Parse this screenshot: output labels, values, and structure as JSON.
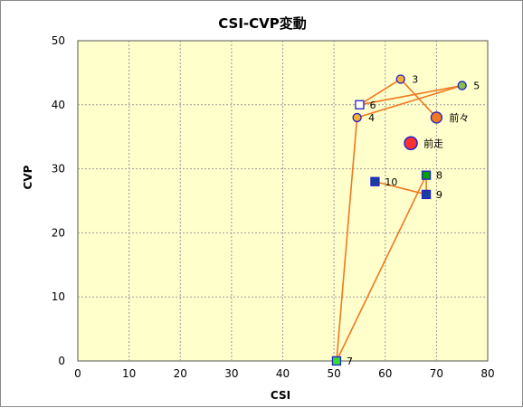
{
  "chart_data": {
    "type": "scatter",
    "title": "CSI-CVP変動",
    "xlabel": "CSI",
    "ylabel": "CVP",
    "xlim": [
      0,
      80
    ],
    "ylim": [
      0,
      50
    ],
    "xticks": [
      0,
      10,
      20,
      30,
      40,
      50,
      60,
      70,
      80
    ],
    "yticks": [
      0,
      10,
      20,
      30,
      40,
      50
    ],
    "grid": true,
    "colors": {
      "plot_bg": "#FFFFCC",
      "grid": "#9A9A9A",
      "line": "#F07820",
      "circle_fill_orange": "#F5B030",
      "circle_fill_latest": "#FF3030",
      "circle_fill_prev": "#F07820",
      "circle_fill_green": "#88C050",
      "square_fill_blue": "#1A3F9E",
      "square_fill_green": "#00A000",
      "square_fill_light_green": "#33DD33",
      "square_fill_white": "#FFFFFF",
      "marker_stroke": "#2222CC"
    },
    "points": [
      {
        "label": "前走",
        "x": 65,
        "y": 34,
        "marker": "circle-large",
        "fill": "circle_fill_latest"
      },
      {
        "label": "前々",
        "x": 70,
        "y": 38,
        "marker": "circle",
        "fill": "circle_fill_prev"
      },
      {
        "label": "3",
        "x": 63,
        "y": 44,
        "marker": "circle",
        "fill": "circle_fill_orange"
      },
      {
        "label": "4",
        "x": 54.5,
        "y": 38,
        "marker": "circle",
        "fill": "circle_fill_orange"
      },
      {
        "label": "5",
        "x": 75,
        "y": 43,
        "marker": "circle",
        "fill": "circle_fill_green"
      },
      {
        "label": "6",
        "x": 55,
        "y": 40,
        "marker": "square",
        "fill": "square_fill_white"
      },
      {
        "label": "7",
        "x": 50.5,
        "y": 0,
        "marker": "square",
        "fill": "square_fill_light_green"
      },
      {
        "label": "8",
        "x": 68,
        "y": 29,
        "marker": "square",
        "fill": "square_fill_green"
      },
      {
        "label": "9",
        "x": 68,
        "y": 26,
        "marker": "square",
        "fill": "square_fill_blue"
      },
      {
        "label": "10",
        "x": 58,
        "y": 28,
        "marker": "square",
        "fill": "square_fill_blue"
      }
    ],
    "connections": [
      [
        "前々",
        "3"
      ],
      [
        "3",
        "6"
      ],
      [
        "6",
        "5"
      ],
      [
        "5",
        "4"
      ],
      [
        "4",
        "7"
      ],
      [
        "7",
        "8"
      ],
      [
        "8",
        "9"
      ],
      [
        "9",
        "10"
      ]
    ]
  }
}
